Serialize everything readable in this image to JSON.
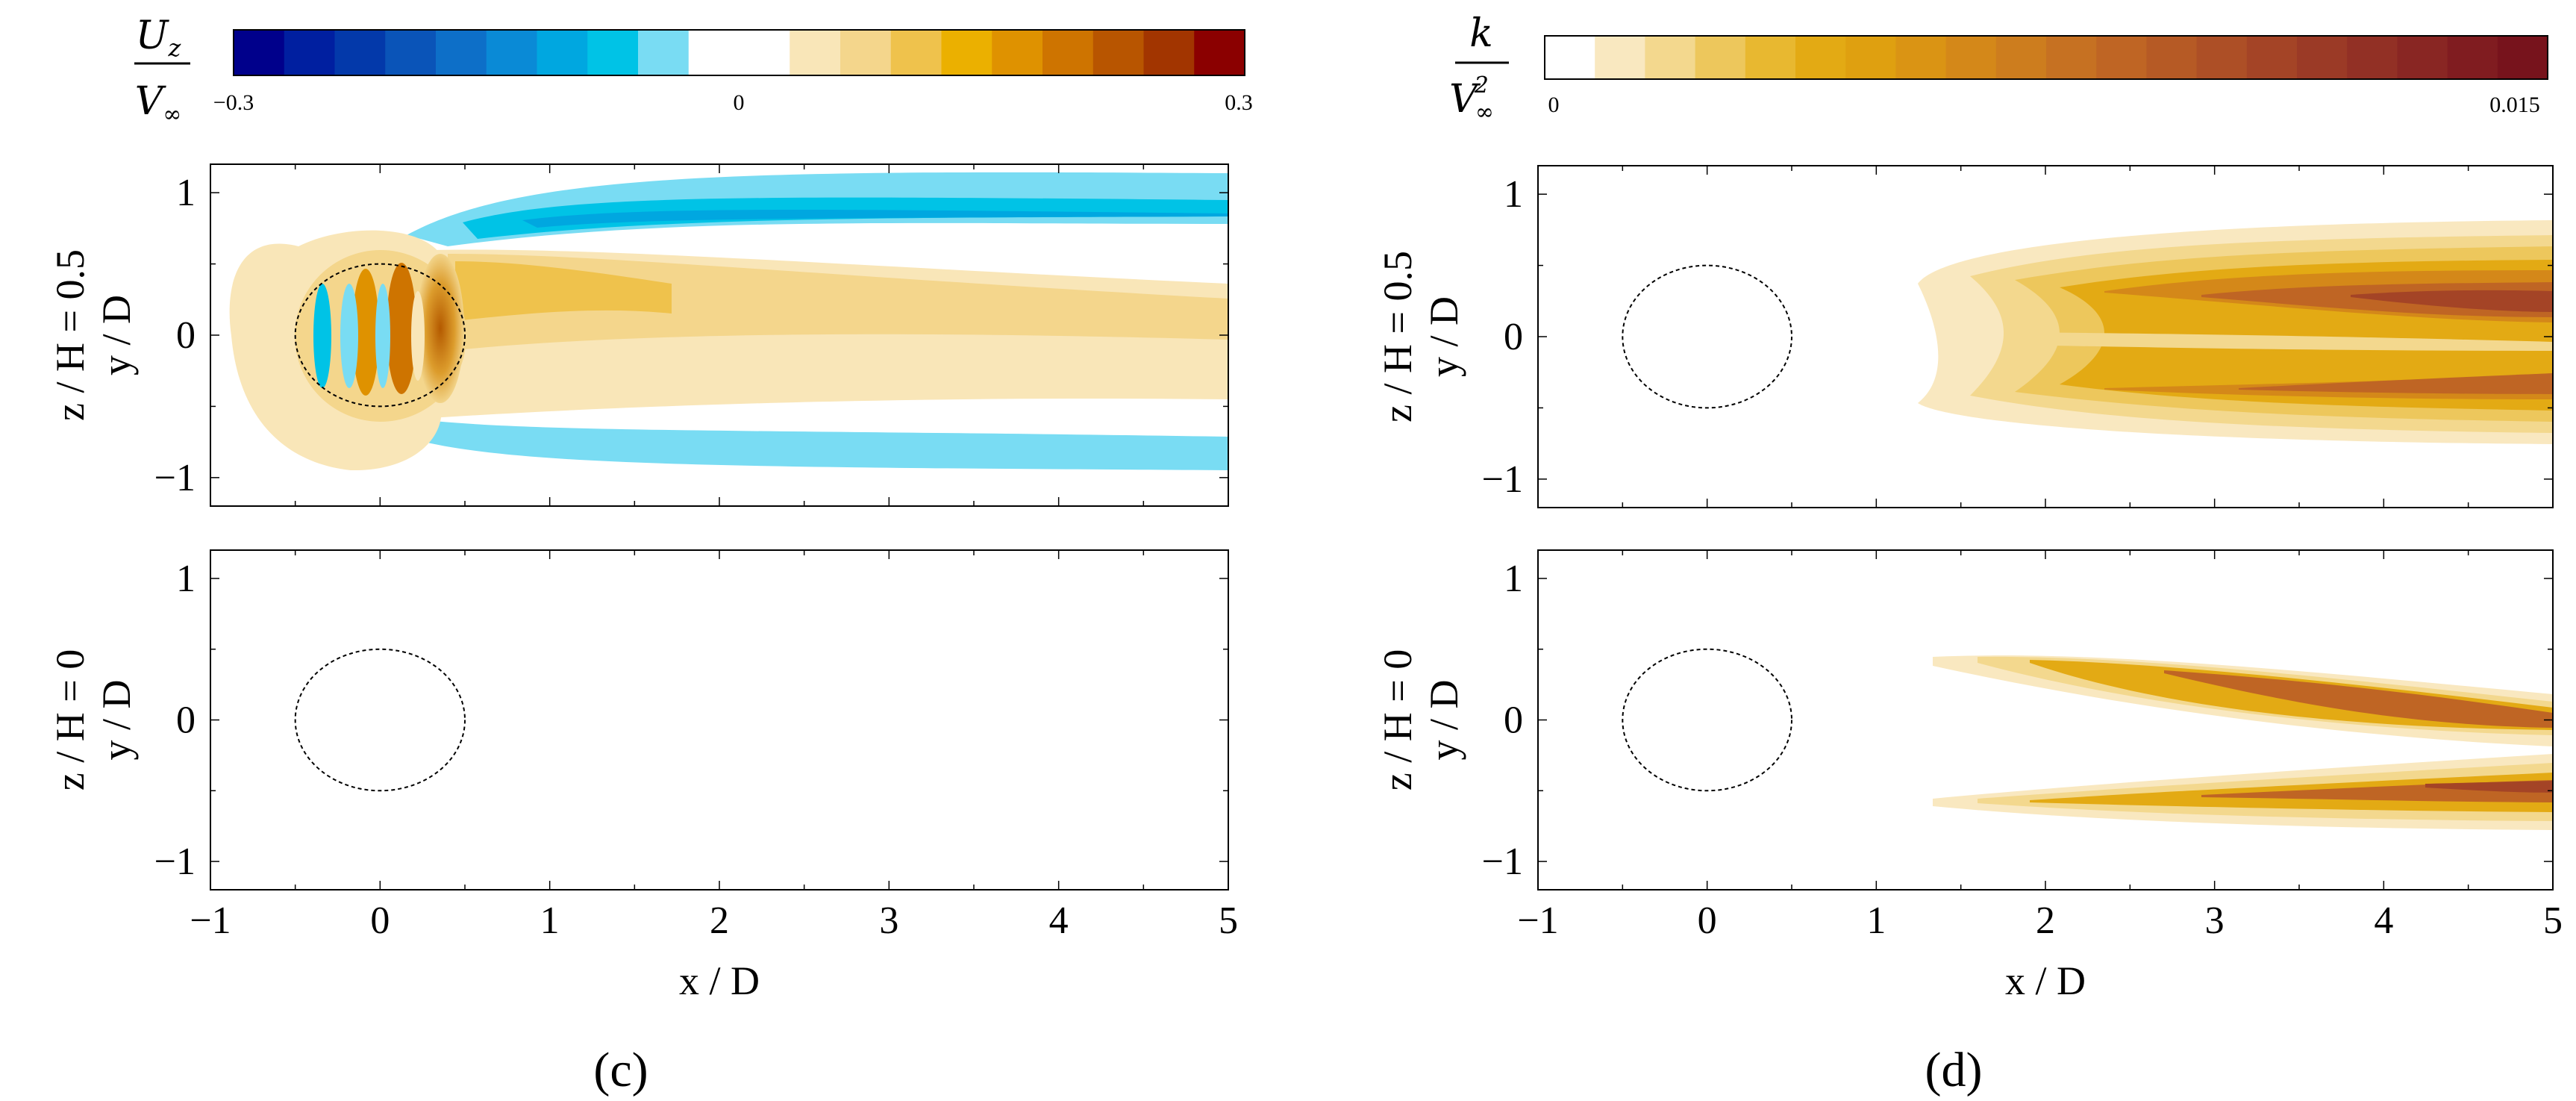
{
  "chart_data": [
    {
      "id": "c",
      "type": "heatmap",
      "panel_label": "(c)",
      "colorbar": {
        "quantity_num": "U",
        "quantity_num_sub": "z",
        "quantity_den": "V",
        "quantity_den_sub": "∞",
        "min_label": "−0.3",
        "mid_label": "0",
        "max_label": "0.3",
        "range": [
          -0.3,
          0.3
        ],
        "colors": [
          "#00008b",
          "#001fa0",
          "#0339aa",
          "#0a54b8",
          "#0d6fc8",
          "#0a8ad6",
          "#00a7e0",
          "#00c3e6",
          "#79dcf3",
          "#ffffff",
          "#ffffff",
          "#f9e6b8",
          "#f4d68c",
          "#efc24c",
          "#ebb000",
          "#df9200",
          "#ce7400",
          "#b85500",
          "#a23500",
          "#8b0000"
        ]
      },
      "xlabel": "x / D",
      "x_ticks": [
        "−1",
        "0",
        "1",
        "2",
        "3",
        "4",
        "5"
      ],
      "xlim": [
        -1,
        5
      ],
      "subplots": [
        {
          "row_label": "z / H = 0.5",
          "ylabel": "y / D",
          "y_ticks": [
            "1",
            "0",
            "−1"
          ],
          "ylim": [
            -1.2,
            1.2
          ],
          "cylinder": {
            "cx": 0,
            "cy": 0,
            "r": 0.5
          }
        },
        {
          "row_label": "z / H = 0",
          "ylabel": "y / D",
          "y_ticks": [
            "1",
            "0",
            "−1"
          ],
          "ylim": [
            -1.2,
            1.2
          ],
          "cylinder": {
            "cx": 0,
            "cy": 0,
            "r": 0.5
          }
        }
      ]
    },
    {
      "id": "d",
      "type": "heatmap",
      "panel_label": "(d)",
      "colorbar": {
        "quantity_num": "k",
        "quantity_den": "V",
        "quantity_den_sub": "∞",
        "quantity_den_sup": "2",
        "min_label": "0",
        "max_label": "0.015",
        "range": [
          0,
          0.015
        ],
        "colors": [
          "#ffffff",
          "#f9e8c0",
          "#f3d88e",
          "#edc75c",
          "#e8b830",
          "#e3aa14",
          "#dfa010",
          "#da9414",
          "#d48819",
          "#cd7d1e",
          "#c67122",
          "#bf6524",
          "#b65a25",
          "#ad4f26",
          "#a44426",
          "#9b3a26",
          "#923025",
          "#892623",
          "#801c20",
          "#77131c"
        ]
      },
      "xlabel": "x / D",
      "x_ticks": [
        "−1",
        "0",
        "1",
        "2",
        "3",
        "4",
        "5"
      ],
      "xlim": [
        -1,
        5
      ],
      "subplots": [
        {
          "row_label": "z / H = 0.5",
          "ylabel": "y / D",
          "y_ticks": [
            "1",
            "0",
            "−1"
          ],
          "ylim": [
            -1.2,
            1.2
          ],
          "cylinder": {
            "cx": 0,
            "cy": 0,
            "r": 0.5
          }
        },
        {
          "row_label": "z / H = 0",
          "ylabel": "y / D",
          "y_ticks": [
            "1",
            "0",
            "−1"
          ],
          "ylim": [
            -1.2,
            1.2
          ],
          "cylinder": {
            "cx": 0,
            "cy": 0,
            "r": 0.5
          }
        }
      ]
    }
  ]
}
